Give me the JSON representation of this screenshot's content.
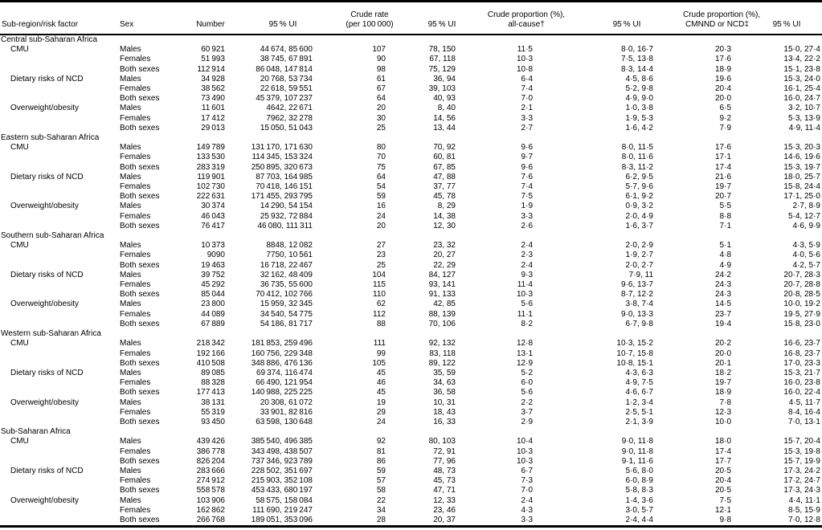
{
  "table": {
    "columns": [
      {
        "id": "risk_factor",
        "label": "Sub-region/risk factor"
      },
      {
        "id": "sex",
        "label": "Sex"
      },
      {
        "id": "number",
        "label": "Number"
      },
      {
        "id": "number_ui",
        "label": "95 % UI"
      },
      {
        "id": "crude_rate",
        "lines": [
          "Crude rate",
          "(per 100 000)"
        ]
      },
      {
        "id": "rate_ui",
        "label": "95 % UI"
      },
      {
        "id": "prop_all_cause",
        "lines": [
          "Crude proportion (%),",
          "all-cause†"
        ]
      },
      {
        "id": "all_cause_ui",
        "label": "95 % UI"
      },
      {
        "id": "prop_cmnnd",
        "lines": [
          "Crude proportion (%),",
          "CMNND or NCD‡"
        ]
      },
      {
        "id": "cmnnd_ui",
        "label": "95 % UI"
      }
    ],
    "sections": [
      {
        "region": "Central sub-Saharan Africa",
        "risk_factors": [
          {
            "name": "CMU",
            "rows": [
              [
                "Males",
                "60 921",
                "44 674, 85 600",
                "107",
                "78, 150",
                "11·5",
                "8·0, 16·7",
                "20·3",
                "15·0, 27·4"
              ],
              [
                "Females",
                "51 993",
                "38 745, 67 891",
                "90",
                "67, 118",
                "10·3",
                "7·5, 13·8",
                "17·6",
                "13·4, 22·2"
              ],
              [
                "Both sexes",
                "112 914",
                "86 048, 147 814",
                "98",
                "75, 129",
                "10·8",
                "8·3, 14·4",
                "18·9",
                "15·1, 23·8"
              ]
            ]
          },
          {
            "name": "Dietary risks of NCD",
            "rows": [
              [
                "Males",
                "34 928",
                "20 768, 53 734",
                "61",
                "36, 94",
                "6·4",
                "4·5, 8·6",
                "19·6",
                "15·3, 24·0"
              ],
              [
                "Females",
                "38 562",
                "22 618, 59 551",
                "67",
                "39, 103",
                "7·4",
                "5·2, 9·8",
                "20·4",
                "16·1, 25·4"
              ],
              [
                "Both sexes",
                "73 490",
                "45 379, 107 237",
                "64",
                "40, 93",
                "7·0",
                "4·9, 9·0",
                "20·0",
                "16·0, 24·7"
              ]
            ]
          },
          {
            "name": "Overweight/obesity",
            "rows": [
              [
                "Males",
                "11 601",
                "4642, 22 671",
                "20",
                "8, 40",
                "2·1",
                "1·0, 3·8",
                "6·5",
                "3·2, 10·7"
              ],
              [
                "Females",
                "17 412",
                "7962, 32 278",
                "30",
                "14, 56",
                "3·3",
                "1·9, 5·3",
                "9·2",
                "5·3, 13·9"
              ],
              [
                "Both sexes",
                "29 013",
                "15 050, 51 043",
                "25",
                "13, 44",
                "2·7",
                "1·6, 4·2",
                "7·9",
                "4·9, 11·4"
              ]
            ]
          }
        ]
      },
      {
        "region": "Eastern sub-Saharan Africa",
        "risk_factors": [
          {
            "name": "CMU",
            "rows": [
              [
                "Males",
                "149 789",
                "131 170, 171 630",
                "80",
                "70, 92",
                "9·6",
                "8·0, 11·5",
                "17·6",
                "15·3, 20·3"
              ],
              [
                "Females",
                "133 530",
                "114 345, 153 324",
                "70",
                "60, 81",
                "9·7",
                "8·0, 11·6",
                "17·1",
                "14·6, 19·6"
              ],
              [
                "Both sexes",
                "283 319",
                "250 895, 320 673",
                "75",
                "67, 85",
                "9·6",
                "8·3, 11·2",
                "17·4",
                "15·3, 19·7"
              ]
            ]
          },
          {
            "name": "Dietary risks of NCD",
            "rows": [
              [
                "Males",
                "119 901",
                "87 703, 164 985",
                "64",
                "47, 88",
                "7·6",
                "6·2, 9·5",
                "21·6",
                "18·0, 25·7"
              ],
              [
                "Females",
                "102 730",
                "70 418, 146 151",
                "54",
                "37, 77",
                "7·4",
                "5·7, 9·6",
                "19·7",
                "15·8, 24·4"
              ],
              [
                "Both sexes",
                "222 631",
                "171 455, 293 795",
                "59",
                "45, 78",
                "7·5",
                "6·1, 9·2",
                "20·7",
                "17·1, 25·0"
              ]
            ]
          },
          {
            "name": "Overweight/obesity",
            "rows": [
              [
                "Males",
                "30 374",
                "14 290, 54 154",
                "16",
                "8, 29",
                "1·9",
                "0·9, 3·2",
                "5·5",
                "2·7, 8·9"
              ],
              [
                "Females",
                "46 043",
                "25 932, 72 884",
                "24",
                "14, 38",
                "3·3",
                "2·0, 4·9",
                "8·8",
                "5·4, 12·7"
              ],
              [
                "Both sexes",
                "76 417",
                "46 080, 111 311",
                "20",
                "12, 30",
                "2·6",
                "1·6, 3·7",
                "7·1",
                "4·6, 9·9"
              ]
            ]
          }
        ]
      },
      {
        "region": "Southern sub-Saharan Africa",
        "risk_factors": [
          {
            "name": "CMU",
            "rows": [
              [
                "Males",
                "10 373",
                "8848, 12 082",
                "27",
                "23, 32",
                "2·4",
                "2·0, 2·9",
                "5·1",
                "4·3, 5·9"
              ],
              [
                "Females",
                "9090",
                "7750, 10 561",
                "23",
                "20, 27",
                "2·3",
                "1·9, 2·7",
                "4·8",
                "4·0, 5·6"
              ],
              [
                "Both sexes",
                "19 463",
                "16 718, 22 467",
                "25",
                "22, 29",
                "2·4",
                "2·0, 2·7",
                "4·9",
                "4·2, 5·7"
              ]
            ]
          },
          {
            "name": "Dietary risks of NCD",
            "rows": [
              [
                "Males",
                "39 752",
                "32 162, 48 409",
                "104",
                "84, 127",
                "9·3",
                "7·9, 11",
                "24·2",
                "20·7, 28·3"
              ],
              [
                "Females",
                "45 292",
                "36 735, 55 600",
                "115",
                "93, 141",
                "11·4",
                "9·6, 13·7",
                "24·3",
                "20·7, 28·8"
              ],
              [
                "Both sexes",
                "85 044",
                "70 412, 102 766",
                "110",
                "91, 133",
                "10·3",
                "8·7, 12·2",
                "24·3",
                "20·8, 28·5"
              ]
            ]
          },
          {
            "name": "Overweight/obesity",
            "rows": [
              [
                "Males",
                "23 800",
                "15 959, 32 345",
                "62",
                "42, 85",
                "5·6",
                "3·8, 7·4",
                "14·5",
                "10·0, 19·2"
              ],
              [
                "Females",
                "44 089",
                "34 540, 54 775",
                "112",
                "88, 139",
                "11·1",
                "9·0, 13·3",
                "23·7",
                "19·5, 27·9"
              ],
              [
                "Both sexes",
                "67 889",
                "54 186, 81 717",
                "88",
                "70, 106",
                "8·2",
                "6·7, 9·8",
                "19·4",
                "15·8, 23·0"
              ]
            ]
          }
        ]
      },
      {
        "region": "Western sub-Saharan Africa",
        "risk_factors": [
          {
            "name": "CMU",
            "rows": [
              [
                "Males",
                "218 342",
                "181 853, 259 496",
                "111",
                "92, 132",
                "12·8",
                "10·3, 15·2",
                "20·2",
                "16·6, 23·7"
              ],
              [
                "Females",
                "192 166",
                "160 756, 229 348",
                "99",
                "83, 118",
                "13·1",
                "10·7, 15·8",
                "20·0",
                "16·8, 23·7"
              ],
              [
                "Both sexes",
                "410 508",
                "348 886, 476 136",
                "105",
                "89, 122",
                "12·9",
                "10·8, 15·1",
                "20·1",
                "17·0, 23·3"
              ]
            ]
          },
          {
            "name": "Dietary risks of NCD",
            "rows": [
              [
                "Males",
                "89 085",
                "69 374, 116 474",
                "45",
                "35, 59",
                "5·2",
                "4·3, 6·3",
                "18·2",
                "15·3, 21·7"
              ],
              [
                "Females",
                "88 328",
                "66 490, 121 954",
                "46",
                "34, 63",
                "6·0",
                "4·9, 7·5",
                "19·7",
                "16·0, 23·8"
              ],
              [
                "Both sexes",
                "177 413",
                "140 988, 225 225",
                "45",
                "36, 58",
                "5·6",
                "4·6, 6·7",
                "18·9",
                "16·0, 22·4"
              ]
            ]
          },
          {
            "name": "Overweight/obesity",
            "rows": [
              [
                "Males",
                "38 131",
                "20 308, 61 072",
                "19",
                "10, 31",
                "2·2",
                "1·2, 3·4",
                "7·8",
                "4·5, 11·7"
              ],
              [
                "Females",
                "55 319",
                "33 901, 82 816",
                "29",
                "18, 43",
                "3·7",
                "2·5, 5·1",
                "12·3",
                "8·4, 16·4"
              ],
              [
                "Both sexes",
                "93 450",
                "63 598, 130 648",
                "24",
                "16, 33",
                "2·9",
                "2·1, 3·9",
                "10·0",
                "7·0, 13·1"
              ]
            ]
          }
        ]
      },
      {
        "region": "Sub-Saharan Africa",
        "risk_factors": [
          {
            "name": "CMU",
            "rows": [
              [
                "Males",
                "439 426",
                "385 540, 496 385",
                "92",
                "80, 103",
                "10·4",
                "9·0, 11·8",
                "18·0",
                "15·7, 20·4"
              ],
              [
                "Females",
                "386 778",
                "343 498, 438 507",
                "81",
                "72, 91",
                "10·3",
                "9·0, 11·8",
                "17·4",
                "15·3, 19·8"
              ],
              [
                "Both sexes",
                "826 204",
                "737 346, 923 789",
                "86",
                "77, 96",
                "10·3",
                "9·1, 11·6",
                "17·7",
                "15·7, 19·9"
              ]
            ]
          },
          {
            "name": "Dietary risks of NCD",
            "rows": [
              [
                "Males",
                "283 666",
                "228 502, 351 697",
                "59",
                "48, 73",
                "6·7",
                "5·6, 8·0",
                "20·5",
                "17·3, 24·2"
              ],
              [
                "Females",
                "274 912",
                "215 903, 352 108",
                "57",
                "45, 73",
                "7·3",
                "6·0, 8·9",
                "20·4",
                "17·2, 24·7"
              ],
              [
                "Both sexes",
                "558 578",
                "453 433, 680 197",
                "58",
                "47, 71",
                "7·0",
                "5·8, 8·3",
                "20·5",
                "17·3, 24·3"
              ]
            ]
          },
          {
            "name": "Overweight/obesity",
            "rows": [
              [
                "Males",
                "103 906",
                "58 575, 158 084",
                "22",
                "12, 33",
                "2·4",
                "1·4, 3·6",
                "7·5",
                "4·4, 11·1"
              ],
              [
                "Females",
                "162 862",
                "111 690, 219 247",
                "34",
                "23, 46",
                "4·3",
                "3·0, 5·7",
                "12·1",
                "8·5, 15·9"
              ],
              [
                "Both sexes",
                "266 768",
                "189 051, 353 096",
                "28",
                "20, 37",
                "3·3",
                "2·4, 4·4",
                "9·8",
                "7·0, 12·8"
              ]
            ]
          }
        ]
      }
    ]
  }
}
